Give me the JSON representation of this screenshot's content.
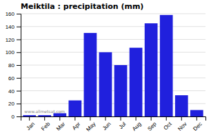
{
  "chart_data": {
    "type": "bar",
    "title": "Meiktila : precipitation (mm)",
    "categories": [
      "Jan",
      "Feb",
      "Mar",
      "Apr",
      "May",
      "Jun",
      "Jul",
      "Aug",
      "Sep",
      "Oct",
      "Nov",
      "Dec"
    ],
    "values": [
      2,
      2,
      5,
      25,
      130,
      100,
      80,
      107,
      145,
      158,
      33,
      10
    ],
    "color": "#2020DD",
    "ylim": [
      0,
      160
    ],
    "yticks": [
      0,
      20,
      40,
      60,
      80,
      100,
      120,
      140,
      160
    ],
    "grid": true,
    "annotations": [
      "www.allmetsat.com"
    ]
  }
}
